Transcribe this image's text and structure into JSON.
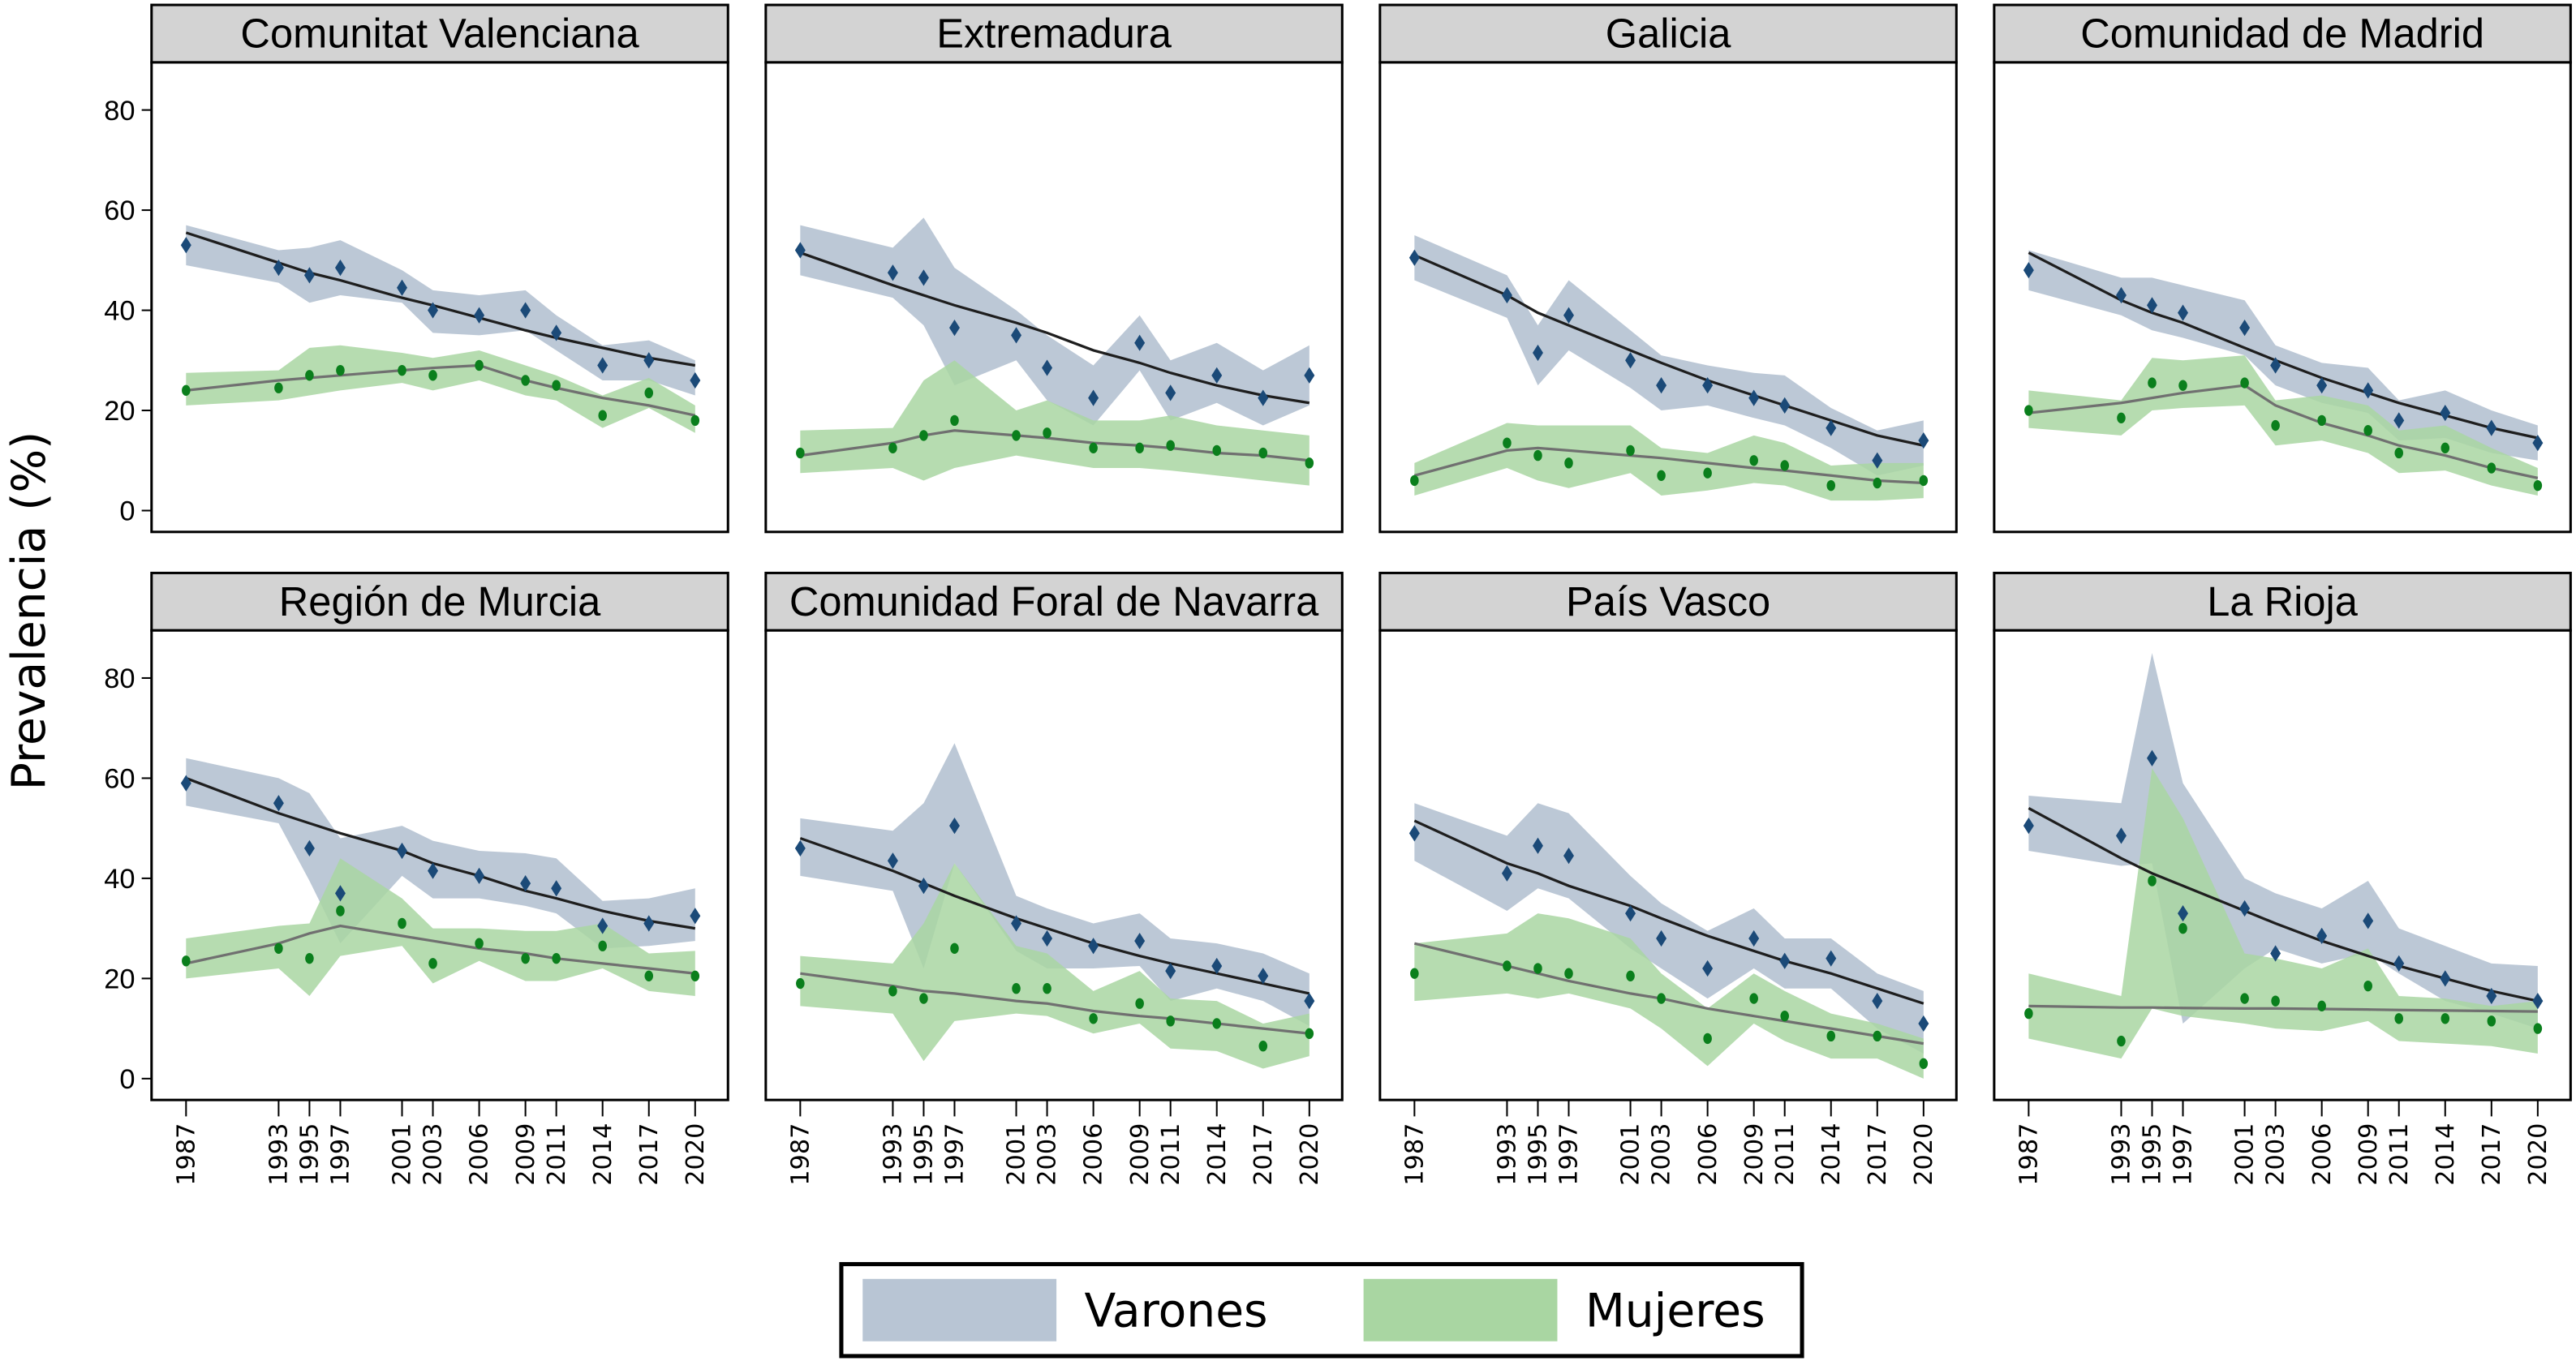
{
  "chart_data": {
    "type": "line",
    "ylabel": "Prevalencia (%)",
    "ylim": [
      -4,
      88
    ],
    "yticks": [
      0,
      20,
      40,
      60,
      80
    ],
    "x": [
      1987,
      1993,
      1995,
      1997,
      2001,
      2003,
      2006,
      2009,
      2011,
      2014,
      2017,
      2020
    ],
    "xtick_labels": [
      "1987",
      "1993",
      "1995",
      "1997",
      "2001",
      "2003",
      "2006",
      "2009",
      "2011",
      "2014",
      "2017",
      "2020"
    ],
    "grid": false,
    "legend": {
      "placement": "bottom",
      "entries": [
        "Varones",
        "Mujeres"
      ]
    },
    "colors": {
      "varones_band": "#b8c5d4",
      "varones_marker": "#1b4a78",
      "varones_fit": "#1e1e1e",
      "mujeres_band": "#a9d6a2",
      "mujeres_marker": "#0a7f1c",
      "mujeres_fit": "#707070",
      "strip_bg": "#d3d3d3"
    },
    "panels": [
      {
        "title": "Comunitat Valenciana",
        "varones": {
          "values": [
            53,
            48.5,
            47,
            48.5,
            44.5,
            40,
            39,
            40,
            35.5,
            29,
            30,
            26
          ],
          "lower": [
            49,
            45.5,
            41.5,
            43,
            41.5,
            35.5,
            35,
            36,
            32,
            26,
            26,
            23
          ],
          "upper": [
            57,
            52,
            52.5,
            54,
            48,
            44,
            43,
            44,
            39,
            33,
            34,
            30
          ],
          "fit": [
            55.5,
            49.5,
            47.5,
            46,
            42.5,
            41,
            38.5,
            36,
            34.5,
            32.5,
            30.5,
            29
          ]
        },
        "mujeres": {
          "values": [
            24,
            24.5,
            27,
            28,
            28,
            27,
            29,
            26,
            25,
            19,
            23.5,
            18
          ],
          "lower": [
            21,
            22,
            23,
            24,
            25.5,
            24,
            26,
            23,
            22,
            16.5,
            20.5,
            15.5
          ],
          "upper": [
            27.5,
            28,
            32.5,
            33,
            31.5,
            30.5,
            32,
            29,
            27,
            23,
            26.5,
            21
          ],
          "fit": [
            24,
            26,
            26.5,
            27,
            28,
            28.5,
            29,
            26,
            24.5,
            22.5,
            21,
            19
          ]
        }
      },
      {
        "title": "Extremadura",
        "varones": {
          "values": [
            52,
            47.5,
            46.5,
            36.5,
            35,
            28.5,
            22.5,
            33.5,
            23.5,
            27,
            22.5,
            27
          ],
          "lower": [
            47,
            42.5,
            37,
            25,
            30,
            22,
            17,
            28,
            18,
            21.5,
            17,
            21
          ],
          "upper": [
            57,
            52.5,
            58.5,
            48.5,
            40,
            35,
            29,
            39,
            30,
            33.5,
            28,
            33
          ],
          "fit": [
            51.5,
            45,
            43,
            41,
            37.5,
            35.5,
            32,
            29.5,
            27.5,
            25,
            23,
            21.5
          ]
        },
        "mujeres": {
          "values": [
            11.5,
            12.5,
            15,
            18,
            15,
            15.5,
            12.5,
            12.5,
            13,
            12,
            11.5,
            9.5
          ],
          "lower": [
            7.5,
            8.5,
            6,
            8.5,
            11,
            10,
            8.5,
            8.5,
            8,
            7,
            6,
            5
          ],
          "upper": [
            16,
            16.5,
            26,
            30,
            20,
            22,
            18,
            18,
            19,
            17,
            16,
            15
          ],
          "fit": [
            11,
            13.5,
            15,
            16,
            15,
            14.5,
            13.5,
            13,
            12.5,
            11.5,
            11,
            10
          ]
        }
      },
      {
        "title": "Galicia",
        "varones": {
          "values": [
            50.5,
            43,
            31.5,
            39,
            30,
            25,
            25,
            22.5,
            21,
            16.5,
            10,
            14
          ],
          "lower": [
            46,
            38.5,
            25,
            32,
            24.5,
            20,
            21,
            18.5,
            17,
            12.5,
            7,
            9
          ],
          "upper": [
            55,
            47,
            37,
            46,
            36,
            31,
            29,
            27.5,
            27,
            20.5,
            16,
            18
          ],
          "fit": [
            51,
            43,
            39.5,
            37,
            32,
            29.5,
            26,
            23,
            21,
            18,
            15,
            13
          ]
        },
        "mujeres": {
          "values": [
            6,
            13.5,
            11,
            9.5,
            12,
            7,
            7.5,
            10,
            9,
            5,
            5.5,
            6
          ],
          "lower": [
            3,
            8.5,
            6,
            4.5,
            7.5,
            3,
            4,
            5.5,
            5,
            2,
            2,
            2.5
          ],
          "upper": [
            9.5,
            17.5,
            17,
            17,
            17,
            12.5,
            11.5,
            15,
            13.5,
            9,
            9.5,
            9.5
          ],
          "fit": [
            7,
            12,
            12.5,
            12,
            11,
            10.5,
            9.5,
            8.5,
            8,
            7,
            6,
            5.5
          ]
        }
      },
      {
        "title": "Comunidad de Madrid",
        "varones": {
          "values": [
            48,
            43,
            41,
            39.5,
            36.5,
            29,
            25,
            24,
            18,
            19.5,
            16.5,
            13.5
          ],
          "lower": [
            44,
            39,
            36,
            34.5,
            31,
            25,
            21.5,
            19.5,
            14,
            14.5,
            11.5,
            10
          ],
          "upper": [
            52,
            46.5,
            46.5,
            45,
            42,
            33,
            29.5,
            28.5,
            22,
            24,
            20,
            17
          ],
          "fit": [
            51.5,
            42,
            39.5,
            37.5,
            32.5,
            30,
            26.5,
            23.5,
            21.5,
            19,
            16.5,
            14.5
          ]
        },
        "mujeres": {
          "values": [
            20,
            18.5,
            25.5,
            25,
            25.5,
            17,
            18,
            16,
            11.5,
            12.5,
            8.5,
            5
          ],
          "lower": [
            16.5,
            15,
            20,
            20.5,
            21,
            13,
            14,
            11.5,
            7.5,
            8,
            5,
            3
          ],
          "upper": [
            24,
            22,
            30.5,
            30,
            31,
            22,
            23,
            21,
            16,
            17,
            12.5,
            8.5
          ],
          "fit": [
            19.5,
            21.5,
            22.5,
            23.5,
            25,
            21,
            17.5,
            15,
            13,
            11,
            8.5,
            6.5
          ]
        }
      },
      {
        "title": "Región de Murcia",
        "varones": {
          "values": [
            59,
            55,
            46,
            37,
            45.5,
            41.5,
            40.5,
            39,
            38,
            30.5,
            31,
            32.5
          ],
          "lower": [
            54.5,
            51,
            39.5,
            27,
            40.5,
            36,
            36,
            34.5,
            33,
            26,
            26.5,
            27.5
          ],
          "upper": [
            64,
            60,
            57,
            48,
            50.5,
            47.5,
            45.5,
            45,
            44,
            35.5,
            36,
            38
          ],
          "fit": [
            60,
            53,
            51,
            49,
            45.5,
            43,
            40.5,
            37.5,
            36,
            33.5,
            31.5,
            30
          ]
        },
        "mujeres": {
          "values": [
            23.5,
            26,
            24,
            33.5,
            31,
            23,
            27,
            24,
            24,
            26.5,
            20.5,
            20.5
          ],
          "lower": [
            20,
            22,
            16.5,
            24.5,
            26.5,
            19,
            23.5,
            19.5,
            19.5,
            22,
            17.5,
            16.5
          ],
          "upper": [
            28,
            30.5,
            31,
            44,
            36,
            30,
            30,
            29.5,
            29.5,
            31,
            25,
            25.5
          ],
          "fit": [
            23,
            27,
            29,
            30.5,
            28.5,
            27.5,
            26,
            25,
            24,
            23,
            22,
            21
          ]
        }
      },
      {
        "title": "Comunidad Foral de Navarra",
        "varones": {
          "values": [
            46,
            43.5,
            38.5,
            50.5,
            31,
            28,
            26.5,
            27.5,
            21.5,
            22.5,
            20.5,
            15.5
          ],
          "lower": [
            40.5,
            37.5,
            22,
            43,
            25.5,
            22,
            22,
            22.5,
            15.5,
            18,
            15.5,
            10.5
          ],
          "upper": [
            52,
            49.5,
            55,
            67,
            36.5,
            34,
            31,
            33,
            28,
            27,
            25,
            21
          ],
          "fit": [
            48,
            41.5,
            39,
            36.5,
            32,
            30,
            27,
            24.5,
            23,
            21,
            19,
            17
          ]
        },
        "mujeres": {
          "values": [
            19,
            17.5,
            16,
            26,
            18,
            18,
            12,
            15,
            11.5,
            11,
            6.5,
            9
          ],
          "lower": [
            14.5,
            13,
            3.5,
            11.5,
            13,
            12.5,
            9,
            11,
            6,
            5.5,
            2,
            4.5
          ],
          "upper": [
            24.5,
            23,
            31,
            43,
            26.5,
            25,
            17.5,
            21.5,
            16,
            15.5,
            11,
            13
          ],
          "fit": [
            21,
            18.5,
            17.5,
            17,
            15.5,
            15,
            13.5,
            12.5,
            12,
            11,
            10,
            9
          ]
        }
      },
      {
        "title": "País Vasco",
        "varones": {
          "values": [
            49,
            41,
            46.5,
            44.5,
            33,
            28,
            22,
            28,
            23.5,
            24,
            15.5,
            11
          ],
          "lower": [
            43.5,
            33.5,
            38,
            36,
            26,
            22,
            16,
            22,
            18,
            18,
            10,
            5
          ],
          "upper": [
            55,
            48.5,
            55,
            53,
            40.5,
            35,
            29.5,
            34,
            28,
            28,
            21,
            17.5
          ],
          "fit": [
            51.5,
            43,
            41,
            38.5,
            34.5,
            32,
            28.5,
            25.5,
            23.5,
            21,
            18,
            15
          ]
        },
        "mujeres": {
          "values": [
            21,
            22.5,
            22,
            21,
            20.5,
            16,
            8,
            16,
            12.5,
            8.5,
            8.5,
            3
          ],
          "lower": [
            15.5,
            17,
            16,
            17,
            14,
            10,
            2.5,
            11,
            7.5,
            4,
            4,
            0
          ],
          "upper": [
            27,
            29,
            33,
            32,
            28,
            21,
            14,
            21,
            17.5,
            13,
            11,
            8
          ],
          "fit": [
            27,
            22.5,
            21,
            19.5,
            17,
            16,
            14,
            12.5,
            11.5,
            10,
            8.5,
            7
          ]
        }
      },
      {
        "title": "La Rioja",
        "varones": {
          "values": [
            50.5,
            48.5,
            64,
            33,
            34,
            25,
            28.5,
            31.5,
            23,
            20,
            16.5,
            15.5
          ],
          "lower": [
            45.5,
            42.5,
            43,
            11,
            22,
            26,
            23,
            25,
            21,
            15.5,
            13,
            10
          ],
          "upper": [
            56.5,
            55,
            85,
            59,
            40,
            37,
            34,
            39.5,
            30,
            26.5,
            23,
            22.5
          ],
          "fit": [
            54,
            44,
            41,
            38.5,
            33.5,
            31,
            27.5,
            24.5,
            22.5,
            20,
            17.5,
            15.5
          ]
        },
        "mujeres": {
          "values": [
            13,
            7.5,
            39.5,
            30,
            16,
            15.5,
            14.5,
            18.5,
            12,
            12,
            11.5,
            10
          ],
          "lower": [
            8,
            4,
            14,
            12.5,
            11,
            10,
            9.5,
            11.5,
            7.5,
            7,
            6.5,
            5
          ],
          "upper": [
            21,
            16.5,
            62,
            52,
            25,
            24,
            22,
            26,
            16.5,
            16,
            14.5,
            15.5
          ],
          "fit": [
            14.5,
            14.2,
            14.2,
            14.1,
            14,
            14,
            13.9,
            13.8,
            13.7,
            13.6,
            13.5,
            13.4
          ]
        }
      }
    ]
  }
}
